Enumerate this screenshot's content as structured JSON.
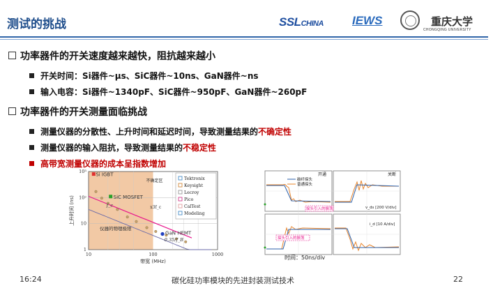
{
  "slide_title": "测试的挑战",
  "logos": {
    "ssl": "SSL",
    "china": "CHINA",
    "iews": "IEWS",
    "cqu": "重庆大学",
    "cqu_en": "CHONGQING UNIVERSITY"
  },
  "sec1": {
    "heading": "功率器件的开关速度越来越快，阻抗越来越小",
    "b1": "开关时间：Si器件~μs、SiC器件~10ns、GaN器件~ns",
    "b2": "输入电容：Si器件~1340pF、SiC器件~950pF、GaN器件~260pF"
  },
  "sec2": {
    "heading": "功率器件的开关测量面临挑战",
    "b1_pre": "测量仪器的分散性、上升时间和延迟时间，导致测量结果的",
    "b1_red": "不确定性",
    "b2_pre": "测量仪器的输入阻抗，导致测量结果的",
    "b2_red": "不稳定性",
    "b3": "高带宽测量仪器的成本呈指数增加"
  },
  "chart_data": {
    "type": "scatter",
    "xlabel": "带宽 (MHz)",
    "ylabel": "上升时间 (ns)",
    "x_scale": "log",
    "y_scale": "log",
    "xlim": [
      10,
      1000
    ],
    "ylim": [
      1,
      1000
    ],
    "x_ticks": [
      "10",
      "100",
      "1000"
    ],
    "y_ticks": [
      "1",
      "10",
      "10²",
      "10³"
    ],
    "regions": [
      "Si IGBT",
      "SiC MOSFET",
      "GaN HEMT"
    ],
    "legend": [
      "Tektronix",
      "Keysight",
      "Lecroy",
      "Pico",
      "CalTest",
      "Modeling"
    ],
    "annotations": [
      "不确定区",
      "仪器的物理极限",
      "0.35/f_B",
      "f_c",
      "x3f_c"
    ],
    "curve_label": "0.35/f_B",
    "points_markers": [
      {
        "x": 13,
        "y": 170
      },
      {
        "x": 16,
        "y": 95
      },
      {
        "x": 20,
        "y": 60
      },
      {
        "x": 28,
        "y": 35
      },
      {
        "x": 40,
        "y": 18
      },
      {
        "x": 55,
        "y": 12
      },
      {
        "x": 80,
        "y": 7
      },
      {
        "x": 110,
        "y": 5
      },
      {
        "x": 160,
        "y": 3.6
      },
      {
        "x": 230,
        "y": 2.6
      },
      {
        "x": 320,
        "y": 2.0
      }
    ],
    "key_points": [
      {
        "label": "Si IGBT",
        "x": 12,
        "y": 800
      },
      {
        "label": "SiC MOSFET",
        "x": 22,
        "y": 110
      },
      {
        "label": "GaN HEMT",
        "x": 140,
        "y": 4
      }
    ],
    "colors": {
      "shade": "#f2c9a5",
      "curve": "#e8168c",
      "line2": "#6a6aa8"
    }
  },
  "waveform": {
    "top_left_label": "开通",
    "top_right_label": "关断",
    "legend": [
      "碳纤探头",
      "普通探头"
    ],
    "top_axis": "v_ds [200 V/div]",
    "bottom_axis": "i_d [10 A/div]",
    "annot_top": "探头引入的振荡",
    "annot_bottom": "探头引入的振荡",
    "time_label": "时间：50ns/div"
  },
  "footer": {
    "time": "16:24",
    "center": "碳化硅功率模块的先进封装测试技术",
    "page": "22"
  }
}
